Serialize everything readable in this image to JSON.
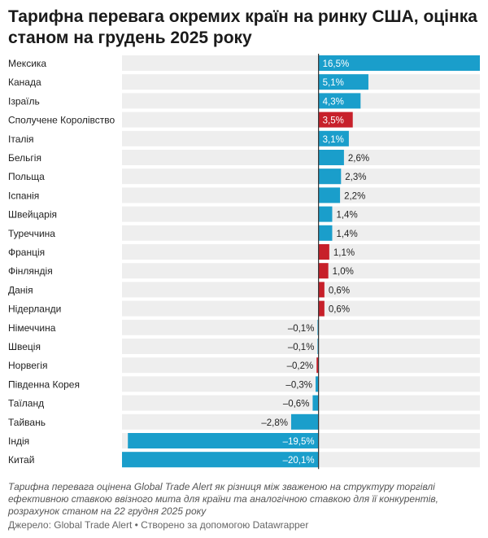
{
  "title": "Тарифна перевага окремих країн на ринку США, оцінка станом на грудень 2025 року",
  "note": "Тарифна перевага оцінена Global Trade Alert як різниця між зваженою на структуру торгівлі ефективною ставкою ввізного мита для країни та аналогічною ставкою для її конкурентів, розрахунок станом на 22 грудня 2025 року",
  "source": "Джерело: Global Trade Alert • Створено за допомогою Datawrapper",
  "colors": {
    "blue": "#1a9ecb",
    "red": "#c7202a",
    "track": "#eeeeee",
    "zero": "#333333"
  },
  "chart_data": {
    "type": "bar",
    "orientation": "horizontal",
    "title": "Тарифна перевага окремих країн на ринку США, оцінка станом на грудень 2025 року",
    "unit": "%",
    "xlim": [
      -20.1,
      16.5
    ],
    "categories": [
      "Мексика",
      "Канада",
      "Ізраїль",
      "Сполучене Королівство",
      "Італія",
      "Бельгія",
      "Польща",
      "Іспанія",
      "Швейцарія",
      "Туреччина",
      "Франція",
      "Фінляндія",
      "Данія",
      "Нідерланди",
      "Німеччина",
      "Швеція",
      "Норвегія",
      "Південна Корея",
      "Таїланд",
      "Тайвань",
      "Індія",
      "Китай"
    ],
    "values": [
      16.5,
      5.1,
      4.3,
      3.5,
      3.1,
      2.6,
      2.3,
      2.2,
      1.4,
      1.4,
      1.1,
      1.0,
      0.6,
      0.6,
      -0.1,
      -0.1,
      -0.2,
      -0.3,
      -0.6,
      -2.8,
      -19.5,
      -20.1
    ],
    "labels": [
      "16,5%",
      "5,1%",
      "4,3%",
      "3,5%",
      "3,1%",
      "2,6%",
      "2,3%",
      "2,2%",
      "1,4%",
      "1,4%",
      "1,1%",
      "1,0%",
      "0,6%",
      "0,6%",
      "–0,1%",
      "–0,1%",
      "–0,2%",
      "–0,3%",
      "–0,6%",
      "–2,8%",
      "–19,5%",
      "–20,1%"
    ],
    "highlight": [
      "blue",
      "blue",
      "blue",
      "red",
      "blue",
      "blue",
      "blue",
      "blue",
      "blue",
      "blue",
      "red",
      "red",
      "red",
      "red",
      "blue",
      "blue",
      "red",
      "blue",
      "blue",
      "blue",
      "blue",
      "blue"
    ]
  }
}
